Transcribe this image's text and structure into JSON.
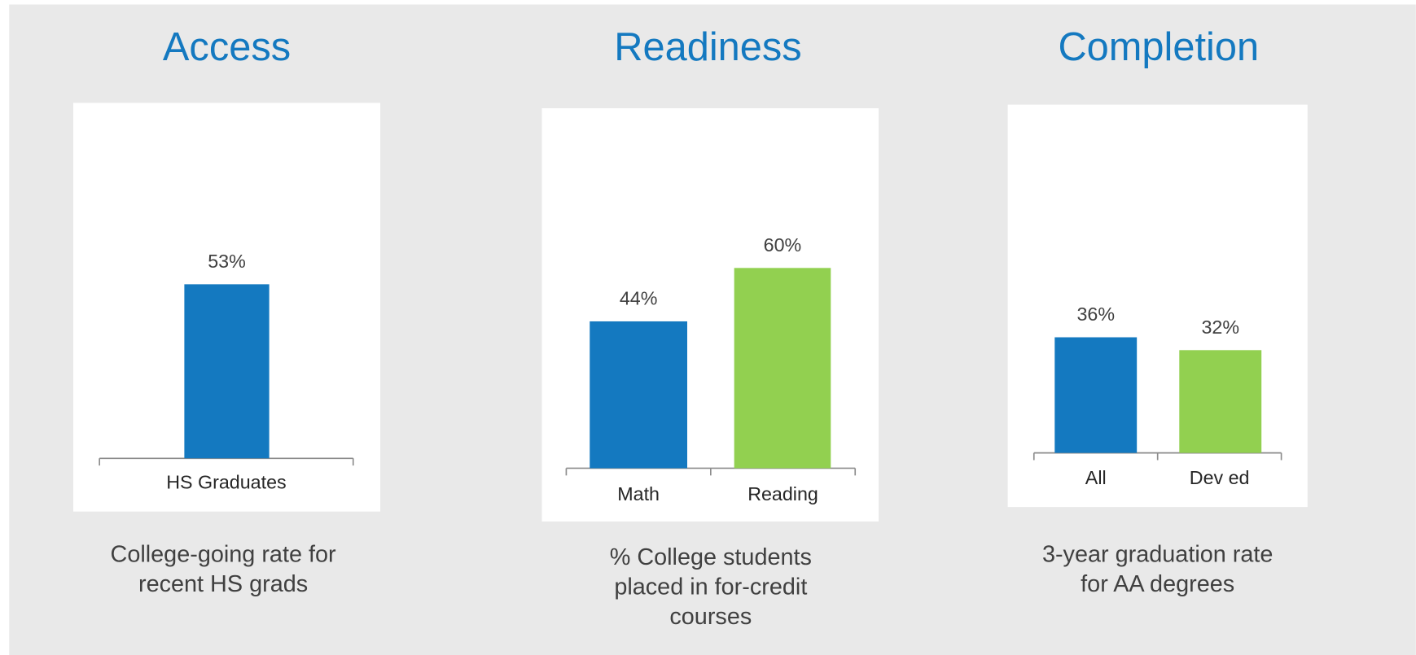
{
  "chart_data": [
    {
      "type": "bar",
      "title": "Access",
      "categories": [
        "HS Graduates"
      ],
      "values": [
        53
      ],
      "value_labels": [
        "53%"
      ],
      "colors": [
        "#1479c0"
      ],
      "ylim": [
        0,
        100
      ],
      "caption": [
        "College-going rate for",
        "recent HS grads"
      ]
    },
    {
      "type": "bar",
      "title": "Readiness",
      "categories": [
        "Math",
        "Reading"
      ],
      "values": [
        44,
        60
      ],
      "value_labels": [
        "44%",
        "60%"
      ],
      "colors": [
        "#1479c0",
        "#92d050"
      ],
      "ylim": [
        0,
        100
      ],
      "caption": [
        "% College students",
        "placed in for-credit",
        "courses"
      ]
    },
    {
      "type": "bar",
      "title": "Completion",
      "categories": [
        "All",
        "Dev ed"
      ],
      "values": [
        36,
        32
      ],
      "value_labels": [
        "36%",
        "32%"
      ],
      "colors": [
        "#1479c0",
        "#92d050"
      ],
      "ylim": [
        0,
        100
      ],
      "caption": [
        "3-year graduation rate",
        "for AA degrees"
      ]
    }
  ]
}
